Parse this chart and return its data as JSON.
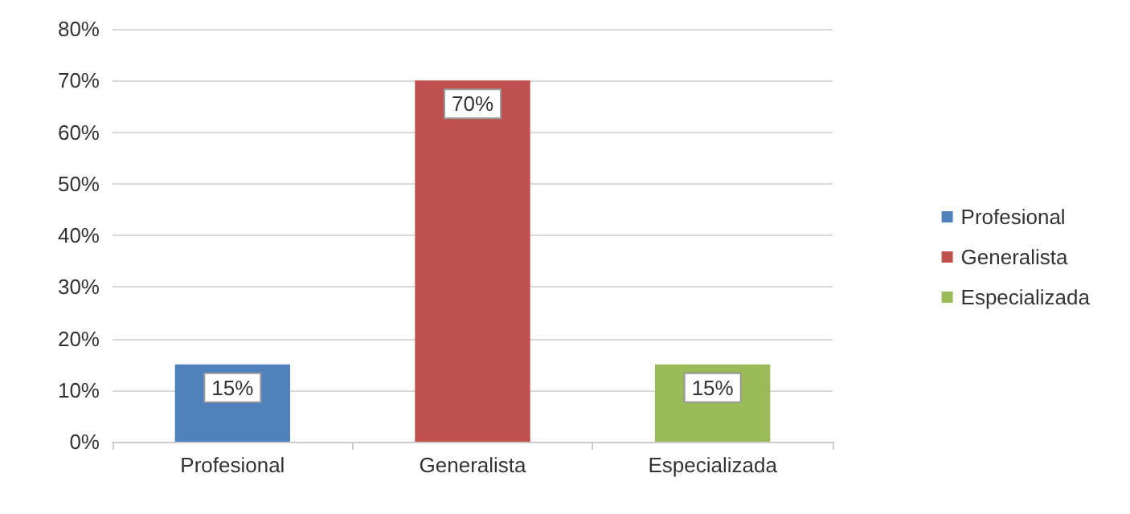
{
  "chart_data": {
    "type": "bar",
    "categories": [
      "Profesional",
      "Generalista",
      "Especializada"
    ],
    "series": [
      {
        "name": "Profesional",
        "color": "#4f81bd",
        "values": [
          15,
          null,
          null
        ],
        "value_labels": [
          "15%",
          null,
          null
        ]
      },
      {
        "name": "Generalista",
        "color": "#c0504d",
        "values": [
          null,
          70,
          null
        ],
        "value_labels": [
          null,
          "70%",
          null
        ]
      },
      {
        "name": "Especializada",
        "color": "#9bbb59",
        "values": [
          null,
          null,
          15
        ],
        "value_labels": [
          null,
          null,
          "15%"
        ]
      }
    ],
    "ylim": [
      0,
      80
    ],
    "yticks": [
      {
        "value": 0,
        "label": "0%"
      },
      {
        "value": 10,
        "label": "10%"
      },
      {
        "value": 20,
        "label": "20%"
      },
      {
        "value": 30,
        "label": "30%"
      },
      {
        "value": 40,
        "label": "40%"
      },
      {
        "value": 50,
        "label": "50%"
      },
      {
        "value": 60,
        "label": "60%"
      },
      {
        "value": 70,
        "label": "70%"
      },
      {
        "value": 80,
        "label": "80%"
      }
    ],
    "grid": "y",
    "legend": "right"
  }
}
